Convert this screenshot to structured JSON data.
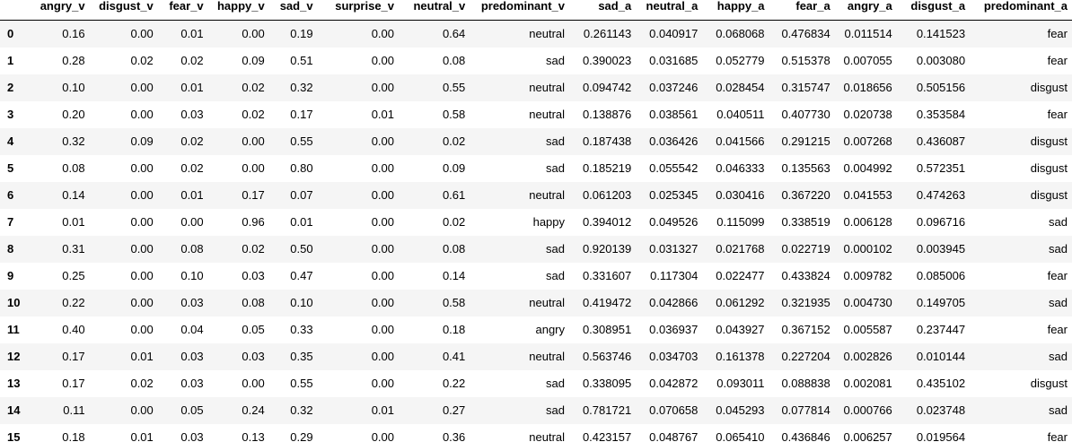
{
  "table": {
    "index_header": "",
    "columns": [
      "angry_v",
      "disgust_v",
      "fear_v",
      "happy_v",
      "sad_v",
      "surprise_v",
      "neutral_v",
      "predominant_v",
      "sad_a",
      "neutral_a",
      "happy_a",
      "fear_a",
      "angry_a",
      "disgust_a",
      "predominant_a"
    ],
    "rows": [
      {
        "index": "0",
        "cells": [
          "0.16",
          "0.00",
          "0.01",
          "0.00",
          "0.19",
          "0.00",
          "0.64",
          "neutral",
          "0.261143",
          "0.040917",
          "0.068068",
          "0.476834",
          "0.011514",
          "0.141523",
          "fear"
        ]
      },
      {
        "index": "1",
        "cells": [
          "0.28",
          "0.02",
          "0.02",
          "0.09",
          "0.51",
          "0.00",
          "0.08",
          "sad",
          "0.390023",
          "0.031685",
          "0.052779",
          "0.515378",
          "0.007055",
          "0.003080",
          "fear"
        ]
      },
      {
        "index": "2",
        "cells": [
          "0.10",
          "0.00",
          "0.01",
          "0.02",
          "0.32",
          "0.00",
          "0.55",
          "neutral",
          "0.094742",
          "0.037246",
          "0.028454",
          "0.315747",
          "0.018656",
          "0.505156",
          "disgust"
        ]
      },
      {
        "index": "3",
        "cells": [
          "0.20",
          "0.00",
          "0.03",
          "0.02",
          "0.17",
          "0.01",
          "0.58",
          "neutral",
          "0.138876",
          "0.038561",
          "0.040511",
          "0.407730",
          "0.020738",
          "0.353584",
          "fear"
        ]
      },
      {
        "index": "4",
        "cells": [
          "0.32",
          "0.09",
          "0.02",
          "0.00",
          "0.55",
          "0.00",
          "0.02",
          "sad",
          "0.187438",
          "0.036426",
          "0.041566",
          "0.291215",
          "0.007268",
          "0.436087",
          "disgust"
        ]
      },
      {
        "index": "5",
        "cells": [
          "0.08",
          "0.00",
          "0.02",
          "0.00",
          "0.80",
          "0.00",
          "0.09",
          "sad",
          "0.185219",
          "0.055542",
          "0.046333",
          "0.135563",
          "0.004992",
          "0.572351",
          "disgust"
        ]
      },
      {
        "index": "6",
        "cells": [
          "0.14",
          "0.00",
          "0.01",
          "0.17",
          "0.07",
          "0.00",
          "0.61",
          "neutral",
          "0.061203",
          "0.025345",
          "0.030416",
          "0.367220",
          "0.041553",
          "0.474263",
          "disgust"
        ]
      },
      {
        "index": "7",
        "cells": [
          "0.01",
          "0.00",
          "0.00",
          "0.96",
          "0.01",
          "0.00",
          "0.02",
          "happy",
          "0.394012",
          "0.049526",
          "0.115099",
          "0.338519",
          "0.006128",
          "0.096716",
          "sad"
        ]
      },
      {
        "index": "8",
        "cells": [
          "0.31",
          "0.00",
          "0.08",
          "0.02",
          "0.50",
          "0.00",
          "0.08",
          "sad",
          "0.920139",
          "0.031327",
          "0.021768",
          "0.022719",
          "0.000102",
          "0.003945",
          "sad"
        ]
      },
      {
        "index": "9",
        "cells": [
          "0.25",
          "0.00",
          "0.10",
          "0.03",
          "0.47",
          "0.00",
          "0.14",
          "sad",
          "0.331607",
          "0.117304",
          "0.022477",
          "0.433824",
          "0.009782",
          "0.085006",
          "fear"
        ]
      },
      {
        "index": "10",
        "cells": [
          "0.22",
          "0.00",
          "0.03",
          "0.08",
          "0.10",
          "0.00",
          "0.58",
          "neutral",
          "0.419472",
          "0.042866",
          "0.061292",
          "0.321935",
          "0.004730",
          "0.149705",
          "sad"
        ]
      },
      {
        "index": "11",
        "cells": [
          "0.40",
          "0.00",
          "0.04",
          "0.05",
          "0.33",
          "0.00",
          "0.18",
          "angry",
          "0.308951",
          "0.036937",
          "0.043927",
          "0.367152",
          "0.005587",
          "0.237447",
          "fear"
        ]
      },
      {
        "index": "12",
        "cells": [
          "0.17",
          "0.01",
          "0.03",
          "0.03",
          "0.35",
          "0.00",
          "0.41",
          "neutral",
          "0.563746",
          "0.034703",
          "0.161378",
          "0.227204",
          "0.002826",
          "0.010144",
          "sad"
        ]
      },
      {
        "index": "13",
        "cells": [
          "0.17",
          "0.02",
          "0.03",
          "0.00",
          "0.55",
          "0.00",
          "0.22",
          "sad",
          "0.338095",
          "0.042872",
          "0.093011",
          "0.088838",
          "0.002081",
          "0.435102",
          "disgust"
        ]
      },
      {
        "index": "14",
        "cells": [
          "0.11",
          "0.00",
          "0.05",
          "0.24",
          "0.32",
          "0.01",
          "0.27",
          "sad",
          "0.781721",
          "0.070658",
          "0.045293",
          "0.077814",
          "0.000766",
          "0.023748",
          "sad"
        ]
      },
      {
        "index": "15",
        "cells": [
          "0.18",
          "0.01",
          "0.03",
          "0.13",
          "0.29",
          "0.00",
          "0.36",
          "neutral",
          "0.423157",
          "0.048767",
          "0.065410",
          "0.436846",
          "0.006257",
          "0.019564",
          "fear"
        ]
      }
    ]
  }
}
